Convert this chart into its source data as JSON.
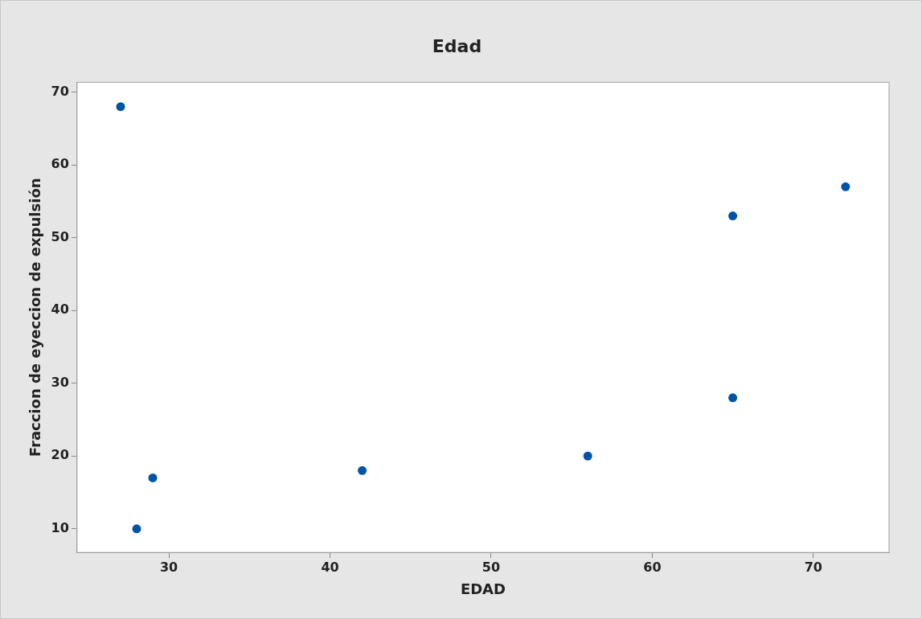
{
  "chart_data": {
    "type": "scatter",
    "title": "Edad",
    "xlabel": "EDAD",
    "ylabel": "Fraccion de eyeccion de expulsión",
    "x": [
      27,
      28,
      29,
      42,
      56,
      65,
      65,
      72
    ],
    "series": [
      {
        "color": "#0054a6",
        "values": [
          68,
          10,
          17,
          18,
          20,
          53,
          28,
          57
        ]
      }
    ],
    "xlim": [
      24.3,
      74.7
    ],
    "xticks": [
      30,
      40,
      50,
      60,
      70
    ],
    "ylim": [
      6.75,
      71.35
    ],
    "yticks": [
      10,
      20,
      30,
      40,
      50,
      60,
      70
    ],
    "marker": "circle",
    "legend": false
  }
}
